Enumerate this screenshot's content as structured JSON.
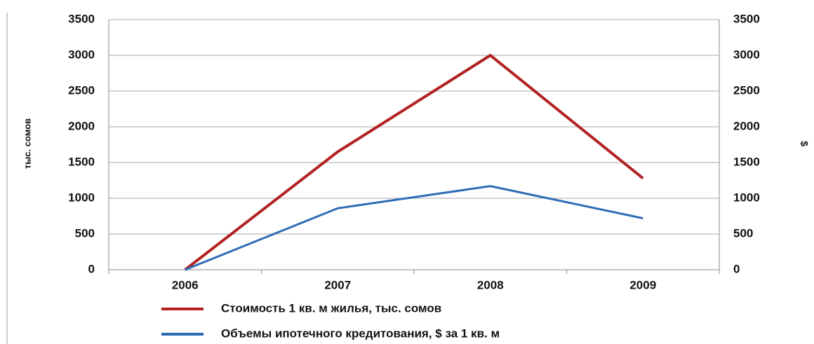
{
  "chart_data": {
    "type": "line",
    "y_label": "тыс. сомов",
    "y2_label": "$",
    "categories": [
      "2006",
      "2007",
      "2008",
      "2009"
    ],
    "series": [
      {
        "name": "Стоимость 1 кв. м жилья, тыс. сомов",
        "color": "#b22222",
        "values": [
          0,
          1650,
          3000,
          1280
        ]
      },
      {
        "name": "Объемы ипотечного кредитования, $ за 1 кв. м",
        "color": "#2e6bb5",
        "values": [
          0,
          860,
          1170,
          720
        ],
        "axis": "y2"
      }
    ],
    "ylim": [
      0,
      3500
    ],
    "yticks": [
      0,
      500,
      1000,
      1500,
      2000,
      2500,
      3000,
      3500
    ],
    "y2lim": [
      0,
      3500
    ],
    "y2ticks": [
      0,
      500,
      1000,
      1500,
      2000,
      2500,
      3000,
      3500
    ],
    "grid": true,
    "legend": "bottom"
  }
}
